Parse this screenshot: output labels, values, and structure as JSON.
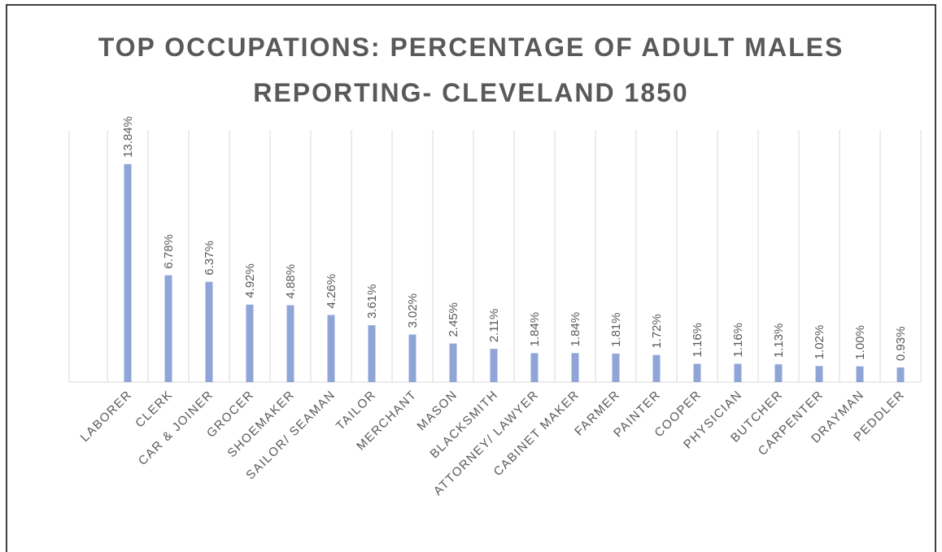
{
  "chart_data": {
    "type": "bar",
    "title": "TOP OCCUPATIONS: PERCENTAGE OF ADULT MALES REPORTING- CLEVELAND 1850",
    "categories": [
      "LABORER",
      "CLERK",
      "CAR & JOINER",
      "GROCER",
      "SHOEMAKER",
      "SAILOR/ SEAMAN",
      "TAILOR",
      "MERCHANT",
      "MASON",
      "BLACKSMITH",
      "ATTORNEY/ LAWYER",
      "CABINET MAKER",
      "FARMER",
      "PAINTER",
      "COOPER",
      "PHYSICIAN",
      "BUTCHER",
      "CARPENTER",
      "DRAYMAN",
      "PEDDLER"
    ],
    "values": [
      13.84,
      6.78,
      6.37,
      4.92,
      4.88,
      4.26,
      3.61,
      3.02,
      2.45,
      2.11,
      1.84,
      1.84,
      1.81,
      1.72,
      1.16,
      1.16,
      1.13,
      1.02,
      1.0,
      0.93
    ],
    "value_labels": [
      "13.84%",
      "6.78%",
      "6.37%",
      "4.92%",
      "4.88%",
      "4.26%",
      "3.61%",
      "3.02%",
      "2.45%",
      "2.11%",
      "1.84%",
      "1.84%",
      "1.81%",
      "1.72%",
      "1.16%",
      "1.16%",
      "1.13%",
      "1.02%",
      "1.00%",
      "0.93%"
    ],
    "color": "#8fa5d8",
    "ylim": [
      0,
      16
    ],
    "grid": true
  }
}
